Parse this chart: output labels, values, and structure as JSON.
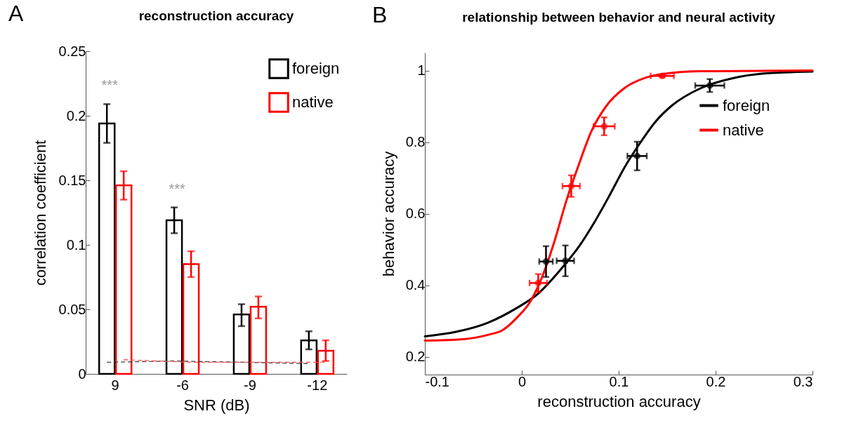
{
  "chart_data": [
    {
      "type": "bar",
      "title": "reconstruction accuracy",
      "xlabel": "SNR (dB)",
      "ylabel": "correlation coefficient",
      "categories": [
        "9",
        "-6",
        "-9",
        "-12"
      ],
      "ylim": [
        0,
        0.25
      ],
      "yticks": [
        0,
        0.05,
        0.1,
        0.15,
        0.2,
        0.25
      ],
      "legend": "top right",
      "series": [
        {
          "name": "foreign",
          "color": "#000000",
          "values": [
            0.194,
            0.119,
            0.046,
            0.026
          ],
          "errors": [
            [
              0.179,
              0.209
            ],
            [
              0.109,
              0.129
            ],
            [
              0.037,
              0.054
            ],
            [
              0.019,
              0.033
            ]
          ]
        },
        {
          "name": "native",
          "color": "#ff0000",
          "values": [
            0.146,
            0.085,
            0.052,
            0.018
          ],
          "errors": [
            [
              0.135,
              0.157
            ],
            [
              0.075,
              0.095
            ],
            [
              0.043,
              0.06
            ],
            [
              0.01,
              0.026
            ]
          ]
        },
        {
          "type": "line",
          "color": "#404040",
          "line_style": "dashed",
          "values": [
            0.009,
            0.01,
            0.009,
            0.008
          ]
        },
        {
          "type": "line",
          "color": "#ff5050",
          "line_style": "dashed",
          "values": [
            0.011,
            0.009,
            0.009,
            0.009
          ]
        }
      ],
      "annotations": [
        "A",
        "***",
        "***"
      ]
    },
    {
      "type": "scatter",
      "title": "relationship between behavior and neural activity",
      "xlabel": "reconstruction accuracy",
      "ylabel": "behavior accuracy",
      "xlim": [
        -0.1,
        0.3
      ],
      "xticks": [
        -0.1,
        0,
        0.1,
        0.2,
        0.3
      ],
      "ylim": [
        0.15,
        1.05
      ],
      "yticks": [
        0.2,
        0.4,
        0.6,
        0.8,
        1
      ],
      "legend": "top right",
      "series": [
        {
          "type": "line",
          "name": "foreign",
          "color": "#000000",
          "x": [
            -0.1,
            -0.067,
            -0.035,
            -0.004,
            0.015,
            0.043,
            0.059,
            0.075,
            0.091,
            0.106,
            0.122,
            0.138,
            0.154,
            0.185,
            0.217,
            0.248,
            0.3
          ],
          "values": [
            0.257,
            0.27,
            0.295,
            0.338,
            0.372,
            0.453,
            0.508,
            0.576,
            0.653,
            0.729,
            0.797,
            0.857,
            0.9,
            0.951,
            0.978,
            0.991,
            0.997
          ]
        },
        {
          "type": "line",
          "name": "native",
          "color": "#ff0000",
          "x": [
            -0.1,
            -0.06,
            -0.035,
            -0.02,
            -0.004,
            0.009,
            0.021,
            0.034,
            0.046,
            0.059,
            0.072,
            0.087,
            0.106,
            0.128,
            0.154,
            0.185,
            0.3
          ],
          "values": [
            0.245,
            0.249,
            0.261,
            0.274,
            0.312,
            0.355,
            0.423,
            0.525,
            0.636,
            0.738,
            0.831,
            0.9,
            0.951,
            0.98,
            0.993,
            0.998,
            1.0
          ]
        },
        {
          "color": "#000000",
          "marker": "circle",
          "x": [
            0.025,
            0.045,
            0.119,
            0.194
          ],
          "values": [
            0.466,
            0.468,
            0.761,
            0.958
          ],
          "errors": [
            0.043,
            0.043,
            0.04,
            0.018
          ],
          "xerrors": [
            0.007,
            0.009,
            0.01,
            0.015
          ]
        },
        {
          "color": "#ff0000",
          "marker": "circle",
          "x": [
            0.017,
            0.051,
            0.085,
            0.145
          ],
          "values": [
            0.406,
            0.677,
            0.844,
            0.985
          ],
          "errors": [
            0.025,
            0.03,
            0.025,
            0.004
          ],
          "xerrors": [
            0.009,
            0.009,
            0.011,
            0.012
          ]
        }
      ],
      "annotations": [
        "B"
      ]
    }
  ]
}
